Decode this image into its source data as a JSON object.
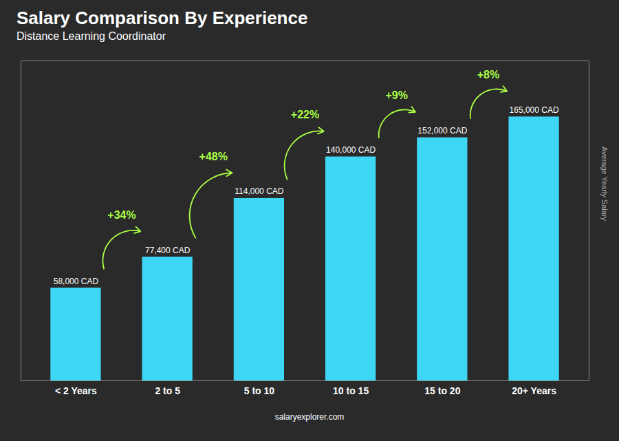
{
  "chart_data": {
    "type": "bar",
    "title": "Salary Comparison By Experience",
    "subtitle": "Distance Learning Coordinator",
    "categories": [
      "< 2 Years",
      "2 to 5",
      "5 to 10",
      "10 to 15",
      "15 to 20",
      "20+ Years"
    ],
    "values": [
      58000,
      77400,
      114000,
      140000,
      152000,
      165000
    ],
    "value_labels": [
      "58,000 CAD",
      "77,400 CAD",
      "114,000 CAD",
      "140,000 CAD",
      "152,000 CAD",
      "165,000 CAD"
    ],
    "data_labels": true,
    "color": "#3dd6f5",
    "ylim": [
      0,
      200000
    ],
    "ylabel": "Average Yearly Salary",
    "tick_labels": "x",
    "annotations": [
      {
        "text": "+34%",
        "color": "#aaff44"
      },
      {
        "text": "+48%",
        "color": "#aaff44"
      },
      {
        "text": "+22%",
        "color": "#aaff44"
      },
      {
        "text": "+9%",
        "color": "#aaff44"
      },
      {
        "text": "+8%",
        "color": "#aaff44"
      }
    ],
    "caption": "salaryexplorer.com"
  }
}
